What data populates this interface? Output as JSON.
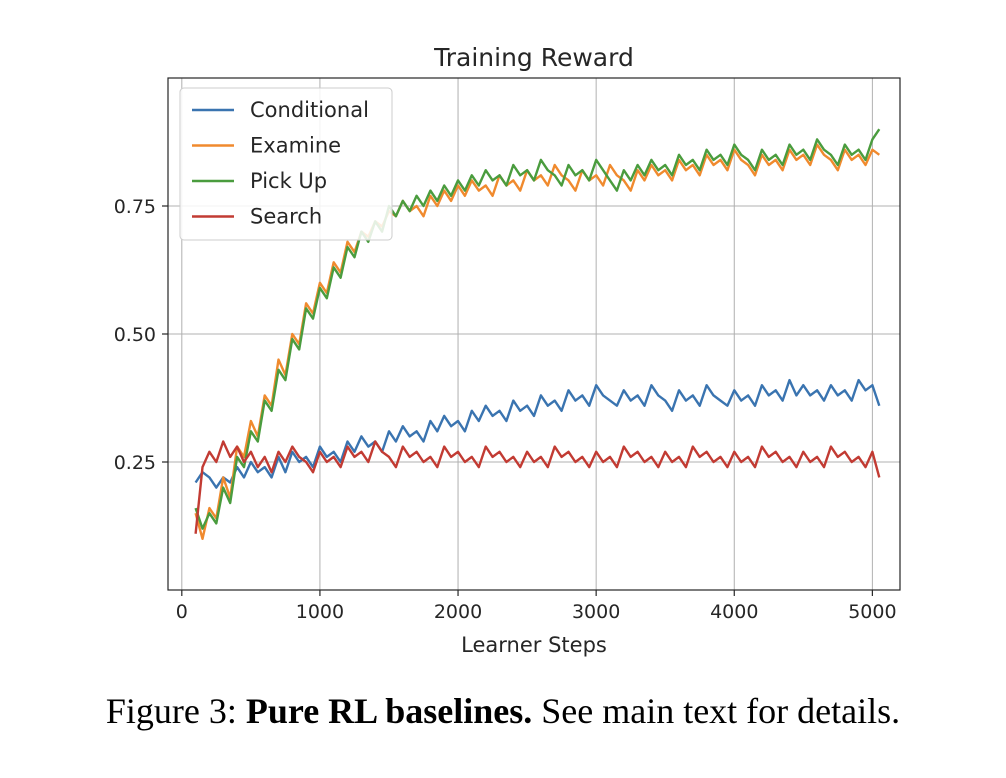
{
  "caption": {
    "label": "Figure 3:",
    "bold": "Pure RL baselines.",
    "rest": "See main text for details."
  },
  "chart_data": {
    "type": "line",
    "title": "Training Reward",
    "xlabel": "Learner Steps",
    "ylabel": "",
    "xlim": [
      -100,
      5200
    ],
    "ylim": [
      0.0,
      1.0
    ],
    "xticks": [
      0,
      1000,
      2000,
      3000,
      4000,
      5000
    ],
    "xtick_labels": [
      "0",
      "1000",
      "2000",
      "3000",
      "4000",
      "5000"
    ],
    "yticks": [
      0.25,
      0.5,
      0.75
    ],
    "ytick_labels": [
      "0.25",
      "0.50",
      "0.75"
    ],
    "grid": true,
    "legend": {
      "position": "top-left",
      "entries": [
        "Conditional",
        "Examine",
        "Pick Up",
        "Search"
      ]
    },
    "x_start": 100,
    "x_step": 50,
    "series": [
      {
        "name": "Conditional",
        "color": "#3a74b0",
        "values": [
          0.21,
          0.23,
          0.22,
          0.2,
          0.22,
          0.21,
          0.24,
          0.22,
          0.25,
          0.23,
          0.24,
          0.22,
          0.26,
          0.23,
          0.27,
          0.25,
          0.26,
          0.24,
          0.28,
          0.26,
          0.27,
          0.25,
          0.29,
          0.27,
          0.3,
          0.28,
          0.29,
          0.27,
          0.31,
          0.29,
          0.32,
          0.3,
          0.31,
          0.29,
          0.33,
          0.31,
          0.34,
          0.32,
          0.33,
          0.31,
          0.35,
          0.33,
          0.36,
          0.34,
          0.35,
          0.33,
          0.37,
          0.35,
          0.36,
          0.34,
          0.38,
          0.36,
          0.37,
          0.35,
          0.39,
          0.37,
          0.38,
          0.36,
          0.4,
          0.38,
          0.37,
          0.36,
          0.39,
          0.37,
          0.38,
          0.36,
          0.4,
          0.38,
          0.37,
          0.35,
          0.39,
          0.37,
          0.38,
          0.36,
          0.4,
          0.38,
          0.37,
          0.36,
          0.39,
          0.37,
          0.38,
          0.36,
          0.4,
          0.38,
          0.39,
          0.37,
          0.41,
          0.38,
          0.4,
          0.38,
          0.39,
          0.37,
          0.4,
          0.38,
          0.39,
          0.37,
          0.41,
          0.39,
          0.4,
          0.36
        ]
      },
      {
        "name": "Examine",
        "color": "#f08a2e",
        "values": [
          0.15,
          0.1,
          0.16,
          0.14,
          0.22,
          0.18,
          0.28,
          0.26,
          0.33,
          0.3,
          0.38,
          0.36,
          0.45,
          0.42,
          0.5,
          0.48,
          0.56,
          0.54,
          0.6,
          0.58,
          0.64,
          0.62,
          0.68,
          0.66,
          0.7,
          0.69,
          0.72,
          0.71,
          0.74,
          0.73,
          0.76,
          0.74,
          0.75,
          0.73,
          0.77,
          0.75,
          0.78,
          0.76,
          0.79,
          0.77,
          0.8,
          0.78,
          0.79,
          0.77,
          0.81,
          0.79,
          0.8,
          0.78,
          0.82,
          0.8,
          0.81,
          0.79,
          0.83,
          0.81,
          0.8,
          0.78,
          0.82,
          0.8,
          0.81,
          0.79,
          0.83,
          0.81,
          0.8,
          0.78,
          0.82,
          0.8,
          0.83,
          0.81,
          0.82,
          0.8,
          0.84,
          0.82,
          0.83,
          0.81,
          0.85,
          0.83,
          0.84,
          0.82,
          0.86,
          0.84,
          0.83,
          0.81,
          0.85,
          0.83,
          0.84,
          0.82,
          0.86,
          0.84,
          0.85,
          0.83,
          0.87,
          0.85,
          0.84,
          0.82,
          0.86,
          0.84,
          0.85,
          0.83,
          0.86,
          0.85
        ]
      },
      {
        "name": "Pick Up",
        "color": "#4a9c3e",
        "values": [
          0.16,
          0.12,
          0.15,
          0.13,
          0.2,
          0.17,
          0.26,
          0.24,
          0.31,
          0.29,
          0.37,
          0.35,
          0.43,
          0.41,
          0.49,
          0.47,
          0.55,
          0.53,
          0.59,
          0.57,
          0.63,
          0.61,
          0.67,
          0.65,
          0.7,
          0.68,
          0.72,
          0.7,
          0.75,
          0.73,
          0.76,
          0.74,
          0.77,
          0.75,
          0.78,
          0.76,
          0.79,
          0.77,
          0.8,
          0.78,
          0.81,
          0.79,
          0.82,
          0.8,
          0.81,
          0.79,
          0.83,
          0.81,
          0.82,
          0.8,
          0.84,
          0.82,
          0.81,
          0.79,
          0.83,
          0.81,
          0.82,
          0.8,
          0.84,
          0.82,
          0.8,
          0.78,
          0.82,
          0.8,
          0.83,
          0.81,
          0.84,
          0.82,
          0.83,
          0.81,
          0.85,
          0.83,
          0.84,
          0.82,
          0.86,
          0.84,
          0.85,
          0.83,
          0.87,
          0.85,
          0.84,
          0.82,
          0.86,
          0.84,
          0.85,
          0.83,
          0.87,
          0.85,
          0.86,
          0.84,
          0.88,
          0.86,
          0.85,
          0.83,
          0.87,
          0.85,
          0.86,
          0.84,
          0.88,
          0.9
        ]
      },
      {
        "name": "Search",
        "color": "#c23b33",
        "values": [
          0.11,
          0.24,
          0.27,
          0.25,
          0.29,
          0.26,
          0.28,
          0.25,
          0.27,
          0.24,
          0.26,
          0.23,
          0.27,
          0.25,
          0.28,
          0.26,
          0.25,
          0.23,
          0.27,
          0.25,
          0.26,
          0.24,
          0.28,
          0.26,
          0.27,
          0.25,
          0.29,
          0.27,
          0.26,
          0.24,
          0.28,
          0.26,
          0.27,
          0.25,
          0.26,
          0.24,
          0.28,
          0.26,
          0.27,
          0.25,
          0.26,
          0.24,
          0.28,
          0.26,
          0.27,
          0.25,
          0.26,
          0.24,
          0.27,
          0.25,
          0.26,
          0.24,
          0.28,
          0.26,
          0.27,
          0.25,
          0.26,
          0.24,
          0.27,
          0.25,
          0.26,
          0.24,
          0.28,
          0.26,
          0.27,
          0.25,
          0.26,
          0.24,
          0.27,
          0.25,
          0.26,
          0.24,
          0.28,
          0.26,
          0.27,
          0.25,
          0.26,
          0.24,
          0.27,
          0.25,
          0.26,
          0.24,
          0.28,
          0.26,
          0.27,
          0.25,
          0.26,
          0.24,
          0.27,
          0.25,
          0.26,
          0.24,
          0.28,
          0.26,
          0.27,
          0.25,
          0.26,
          0.24,
          0.27,
          0.22
        ]
      }
    ]
  }
}
